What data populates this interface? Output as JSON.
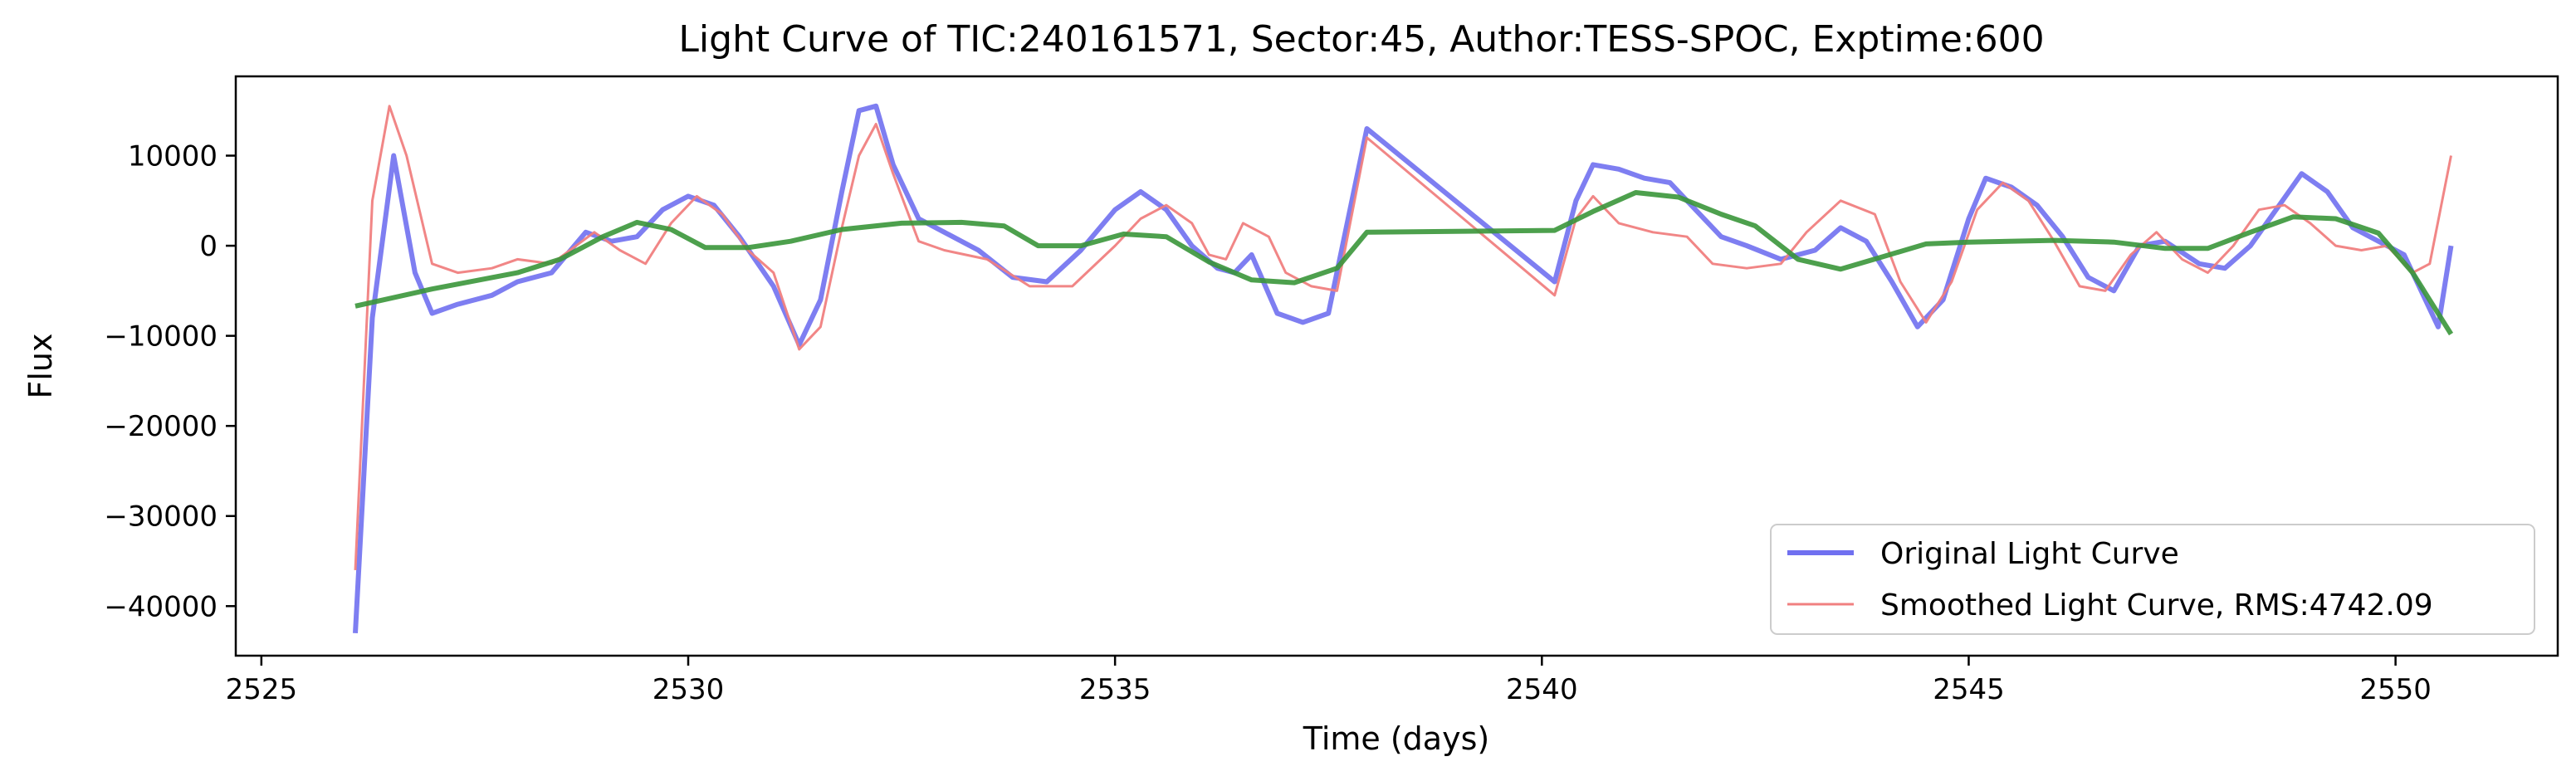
{
  "chart_data": {
    "type": "line",
    "title": "Light Curve of TIC:240161571, Sector:45, Author:TESS-SPOC, Exptime:600",
    "xlabel": "Time (days)",
    "ylabel": "Flux",
    "xlim": [
      2524.7,
      2551.9
    ],
    "ylim": [
      -45500,
      18800
    ],
    "xticks": [
      2525,
      2530,
      2535,
      2540,
      2545,
      2550
    ],
    "yticks": [
      10000,
      0,
      -10000,
      -20000,
      -30000,
      -40000
    ],
    "grid": false,
    "legend_position": "lower-right",
    "series": [
      {
        "name": "Original Light Curve",
        "color": "#7070f0",
        "x": [
          2526.1,
          2526.3,
          2526.55,
          2526.8,
          2527.0,
          2527.3,
          2527.7,
          2528.0,
          2528.4,
          2528.8,
          2529.1,
          2529.4,
          2529.7,
          2530.0,
          2530.3,
          2530.6,
          2531.0,
          2531.3,
          2531.55,
          2531.8,
          2532.0,
          2532.2,
          2532.4,
          2532.7,
          2533.0,
          2533.4,
          2533.8,
          2534.2,
          2534.6,
          2535.0,
          2535.3,
          2535.6,
          2535.9,
          2536.2,
          2536.4,
          2536.6,
          2536.9,
          2537.2,
          2537.5,
          2537.95,
          2540.15,
          2540.4,
          2540.6,
          2540.9,
          2541.2,
          2541.5,
          2541.8,
          2542.1,
          2542.4,
          2542.8,
          2543.2,
          2543.5,
          2543.8,
          2544.1,
          2544.4,
          2544.7,
          2545.0,
          2545.2,
          2545.5,
          2545.8,
          2546.1,
          2546.4,
          2546.7,
          2547.0,
          2547.3,
          2547.7,
          2548.0,
          2548.3,
          2548.6,
          2548.9,
          2549.2,
          2549.5,
          2549.8,
          2550.1,
          2550.3,
          2550.5,
          2550.65
        ],
        "y": [
          -43000,
          -8000,
          10000,
          -3000,
          -7500,
          -6500,
          -5500,
          -4000,
          -3000,
          1500,
          500,
          1000,
          4000,
          5500,
          4500,
          1000,
          -4500,
          -11000,
          -6000,
          6000,
          15000,
          15500,
          9000,
          3000,
          1500,
          -500,
          -3500,
          -4000,
          -500,
          4000,
          6000,
          4000,
          0,
          -2500,
          -3000,
          -1000,
          -7500,
          -8500,
          -7500,
          13000,
          -4000,
          5000,
          9000,
          8500,
          7500,
          7000,
          4000,
          1000,
          0,
          -1500,
          -500,
          2000,
          500,
          -4000,
          -9000,
          -6000,
          3000,
          7500,
          6500,
          4500,
          1000,
          -3500,
          -5000,
          0,
          500,
          -2000,
          -2500,
          0,
          4000,
          8000,
          6000,
          2000,
          500,
          -1000,
          -5000,
          -9000,
          0
        ]
      },
      {
        "name": "Smoothed Light Curve, RMS:4742.09",
        "color": "#f08080",
        "x": [
          2526.1,
          2526.3,
          2526.5,
          2526.7,
          2527.0,
          2527.3,
          2527.7,
          2528.0,
          2528.4,
          2528.9,
          2529.2,
          2529.5,
          2529.8,
          2530.1,
          2530.4,
          2530.7,
          2531.0,
          2531.3,
          2531.55,
          2531.8,
          2532.0,
          2532.2,
          2532.4,
          2532.7,
          2533.0,
          2533.5,
          2534.0,
          2534.5,
          2535.0,
          2535.3,
          2535.6,
          2535.9,
          2536.1,
          2536.3,
          2536.5,
          2536.8,
          2537.0,
          2537.3,
          2537.6,
          2537.95,
          2540.15,
          2540.4,
          2540.6,
          2540.9,
          2541.3,
          2541.7,
          2542.0,
          2542.4,
          2542.8,
          2543.1,
          2543.5,
          2543.9,
          2544.2,
          2544.5,
          2544.8,
          2545.1,
          2545.4,
          2545.7,
          2546.0,
          2546.3,
          2546.6,
          2546.9,
          2547.2,
          2547.5,
          2547.8,
          2548.1,
          2548.4,
          2548.7,
          2549.0,
          2549.3,
          2549.6,
          2549.9,
          2550.2,
          2550.4,
          2550.65
        ],
        "y": [
          -36000,
          5000,
          15500,
          10000,
          -2000,
          -3000,
          -2500,
          -1500,
          -2000,
          1500,
          -500,
          -2000,
          2500,
          5500,
          3500,
          -500,
          -3000,
          -11500,
          -9000,
          2000,
          10000,
          13500,
          8000,
          500,
          -500,
          -1500,
          -4500,
          -4500,
          0,
          3000,
          4500,
          2500,
          -1000,
          -1500,
          2500,
          1000,
          -3000,
          -4500,
          -5000,
          12000,
          -5500,
          3000,
          5500,
          2500,
          1500,
          1000,
          -2000,
          -2500,
          -2000,
          1500,
          5000,
          3500,
          -4000,
          -8500,
          -4000,
          4000,
          7000,
          5000,
          500,
          -4500,
          -5000,
          -1000,
          1500,
          -1500,
          -3000,
          0,
          4000,
          4500,
          2500,
          0,
          -500,
          0,
          -3000,
          -2000,
          10000
        ]
      },
      {
        "name": "",
        "color": "#3a963a",
        "x": [
          2526.1,
          2527.0,
          2528.0,
          2528.5,
          2529.0,
          2529.4,
          2529.8,
          2530.2,
          2530.7,
          2531.2,
          2531.8,
          2532.5,
          2533.2,
          2533.7,
          2534.1,
          2534.6,
          2535.1,
          2535.6,
          2536.1,
          2536.6,
          2537.1,
          2537.6,
          2537.95,
          2540.15,
          2540.6,
          2541.1,
          2541.6,
          2542.1,
          2542.5,
          2543.0,
          2543.5,
          2544.0,
          2544.5,
          2545.0,
          2546.0,
          2546.7,
          2547.3,
          2547.8,
          2548.3,
          2548.8,
          2549.3,
          2549.8,
          2550.2,
          2550.65
        ],
        "y": [
          -6700,
          -4800,
          -3000,
          -1500,
          1000,
          2600,
          1800,
          -200,
          -200,
          500,
          1800,
          2500,
          2600,
          2200,
          0,
          0,
          1300,
          1000,
          -1800,
          -3800,
          -4100,
          -2500,
          1500,
          1700,
          3800,
          5900,
          5400,
          3500,
          2200,
          -1500,
          -2600,
          -1200,
          200,
          400,
          600,
          400,
          -300,
          -300,
          1500,
          3200,
          3000,
          1400,
          -3000,
          -9800
        ]
      }
    ]
  }
}
